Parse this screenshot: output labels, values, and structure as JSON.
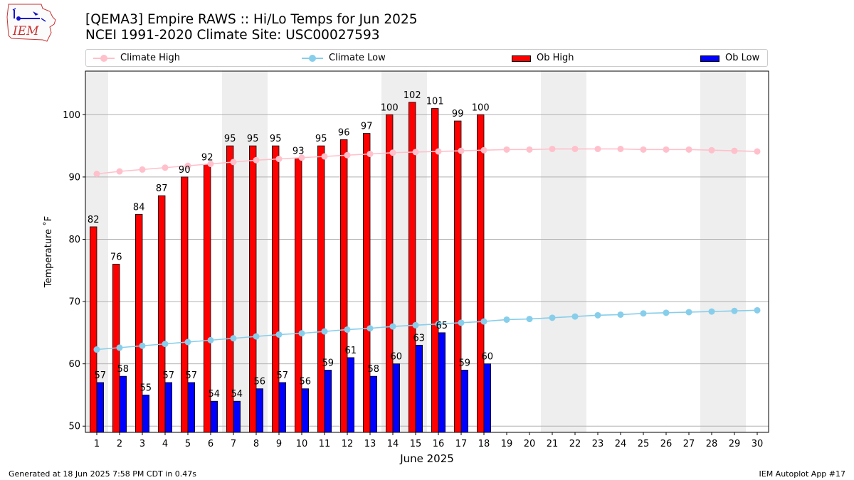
{
  "logo": {
    "text": "IEM"
  },
  "header": {
    "title_line1": "[QEMA3] Empire RAWS :: Hi/Lo Temps for Jun 2025",
    "title_line2": "NCEI 1991-2020 Climate Site: USC00027593"
  },
  "legend": {
    "items": [
      {
        "label": "Climate High",
        "type": "line",
        "color": "#ffc0cb"
      },
      {
        "label": "Climate Low",
        "type": "line",
        "color": "#87ceeb"
      },
      {
        "label": "Ob High",
        "type": "bar",
        "color": "#ff0000"
      },
      {
        "label": "Ob Low",
        "type": "bar",
        "color": "#0000ff"
      }
    ]
  },
  "chart_data": {
    "type": "bar",
    "title": "[QEMA3] Empire RAWS :: Hi/Lo Temps for Jun 2025",
    "xlabel": "June 2025",
    "ylabel": "Temperature ˚F",
    "ylim": [
      49,
      107
    ],
    "yticks": [
      50,
      60,
      70,
      80,
      90,
      100
    ],
    "grid": true,
    "days": [
      1,
      2,
      3,
      4,
      5,
      6,
      7,
      8,
      9,
      10,
      11,
      12,
      13,
      14,
      15,
      16,
      17,
      18,
      19,
      20,
      21,
      22,
      23,
      24,
      25,
      26,
      27,
      28,
      29,
      30
    ],
    "weekend_days": [
      1,
      7,
      8,
      14,
      15,
      21,
      22,
      28,
      29
    ],
    "series": [
      {
        "name": "Ob High",
        "type": "bar",
        "color": "#ff0000",
        "values": [
          82,
          76,
          84,
          87,
          90,
          92,
          95,
          95,
          95,
          93,
          95,
          96,
          97,
          100,
          102,
          101,
          99,
          100
        ]
      },
      {
        "name": "Ob Low",
        "type": "bar",
        "color": "#0000ff",
        "values": [
          57,
          58,
          55,
          57,
          57,
          54,
          54,
          56,
          57,
          56,
          59,
          61,
          58,
          60,
          63,
          65,
          59,
          60
        ]
      },
      {
        "name": "Climate High",
        "type": "line",
        "color": "#ffc0cb",
        "values": [
          90.5,
          90.9,
          91.2,
          91.5,
          91.8,
          92.1,
          92.4,
          92.7,
          92.9,
          93.1,
          93.3,
          93.5,
          93.7,
          93.9,
          94.0,
          94.1,
          94.2,
          94.3,
          94.4,
          94.4,
          94.5,
          94.5,
          94.5,
          94.5,
          94.4,
          94.4,
          94.4,
          94.3,
          94.2,
          94.1
        ]
      },
      {
        "name": "Climate Low",
        "type": "line",
        "color": "#87ceeb",
        "values": [
          62.3,
          62.6,
          62.9,
          63.2,
          63.5,
          63.8,
          64.1,
          64.4,
          64.7,
          64.9,
          65.2,
          65.5,
          65.7,
          66.0,
          66.2,
          66.4,
          66.6,
          66.8,
          67.1,
          67.2,
          67.4,
          67.6,
          67.8,
          67.9,
          68.1,
          68.2,
          68.3,
          68.4,
          68.5,
          68.6
        ]
      }
    ]
  },
  "footer": {
    "generated": "Generated at 18 Jun 2025 7:58 PM CDT in 0.47s",
    "app": "IEM Autoplot App #17"
  }
}
